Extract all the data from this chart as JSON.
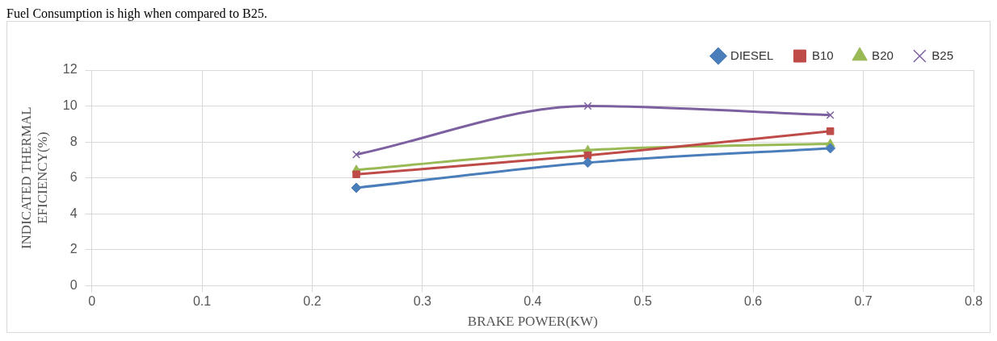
{
  "chart_data": {
    "type": "line",
    "annotations": [
      "Fuel Consumption is high when compared to B25."
    ],
    "xlabel": "BRAKE POWER(KW)",
    "ylabel": "INDICATED THERMAL\nEFICIENCY(%)",
    "x": [
      0.24,
      0.45,
      0.67
    ],
    "xlim": [
      0,
      0.8
    ],
    "xticks": [
      0,
      0.1,
      0.2,
      0.3,
      0.4,
      0.5,
      0.6,
      0.7,
      0.8
    ],
    "ylim": [
      0,
      12
    ],
    "yticks": [
      0,
      2,
      4,
      6,
      8,
      10,
      12
    ],
    "grid": true,
    "legend": "top right",
    "series": [
      {
        "name": "DIESEL",
        "color": "#4a7ebb",
        "marker": "diamond",
        "values": [
          5.45,
          6.85,
          7.65
        ]
      },
      {
        "name": "B10",
        "color": "#be4b48",
        "marker": "square",
        "values": [
          6.2,
          7.25,
          8.6
        ]
      },
      {
        "name": "B20",
        "color": "#98b954",
        "marker": "triangle",
        "values": [
          6.45,
          7.55,
          7.9
        ]
      },
      {
        "name": "B25",
        "color": "#7d60a0",
        "marker": "cross",
        "values": [
          7.3,
          10.0,
          9.5
        ]
      }
    ]
  }
}
